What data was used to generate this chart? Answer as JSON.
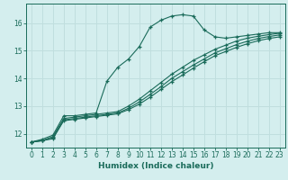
{
  "xlabel": "Humidex (Indice chaleur)",
  "bg_color": "#d4eeee",
  "grid_color": "#c0dede",
  "line_color": "#1a6b5a",
  "xlim": [
    -0.5,
    23.5
  ],
  "ylim": [
    11.5,
    16.7
  ],
  "xticks": [
    0,
    1,
    2,
    3,
    4,
    5,
    6,
    7,
    8,
    9,
    10,
    11,
    12,
    13,
    14,
    15,
    16,
    17,
    18,
    19,
    20,
    21,
    22,
    23
  ],
  "yticks": [
    12,
    13,
    14,
    15,
    16
  ],
  "series1_x": [
    0,
    1,
    2,
    3,
    4,
    5,
    6,
    7,
    8,
    9,
    10,
    11,
    12,
    13,
    14,
    15,
    16,
    17,
    18,
    19,
    20,
    21,
    22,
    23
  ],
  "series1_y": [
    11.7,
    11.8,
    11.95,
    12.65,
    12.65,
    12.7,
    12.75,
    13.9,
    14.4,
    14.7,
    15.15,
    15.85,
    16.1,
    16.25,
    16.3,
    16.25,
    15.75,
    15.5,
    15.45,
    15.5,
    15.55,
    15.6,
    15.65,
    15.65
  ],
  "series2_x": [
    0,
    1,
    2,
    3,
    4,
    5,
    6,
    7,
    8,
    9,
    10,
    11,
    12,
    13,
    14,
    15,
    16,
    17,
    18,
    19,
    20,
    21,
    22,
    23
  ],
  "series2_y": [
    11.7,
    11.75,
    11.9,
    12.55,
    12.6,
    12.65,
    12.7,
    12.75,
    12.8,
    13.0,
    13.25,
    13.55,
    13.85,
    14.15,
    14.4,
    14.65,
    14.85,
    15.05,
    15.2,
    15.35,
    15.45,
    15.52,
    15.58,
    15.63
  ],
  "series3_x": [
    0,
    1,
    2,
    3,
    4,
    5,
    6,
    7,
    8,
    9,
    10,
    11,
    12,
    13,
    14,
    15,
    16,
    17,
    18,
    19,
    20,
    21,
    22,
    23
  ],
  "series3_y": [
    11.7,
    11.75,
    11.85,
    12.5,
    12.55,
    12.6,
    12.65,
    12.7,
    12.75,
    12.92,
    13.15,
    13.42,
    13.7,
    14.0,
    14.24,
    14.48,
    14.7,
    14.92,
    15.07,
    15.22,
    15.34,
    15.44,
    15.51,
    15.57
  ],
  "series4_x": [
    0,
    1,
    2,
    3,
    4,
    5,
    6,
    7,
    8,
    9,
    10,
    11,
    12,
    13,
    14,
    15,
    16,
    17,
    18,
    19,
    20,
    21,
    22,
    23
  ],
  "series4_y": [
    11.7,
    11.75,
    11.82,
    12.47,
    12.52,
    12.57,
    12.62,
    12.67,
    12.72,
    12.87,
    13.07,
    13.32,
    13.6,
    13.88,
    14.12,
    14.37,
    14.6,
    14.82,
    14.97,
    15.12,
    15.25,
    15.36,
    15.44,
    15.5
  ]
}
